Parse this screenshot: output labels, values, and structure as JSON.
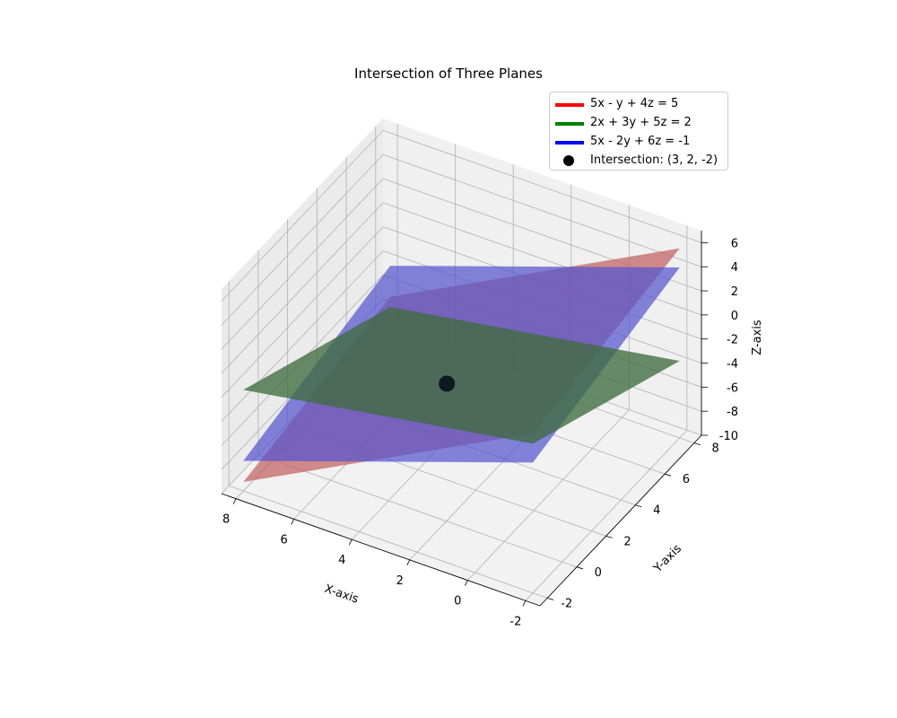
{
  "chart_data": {
    "type": "surface3d",
    "title": "Intersection of Three Planes",
    "xlabel": "X-axis",
    "ylabel": "Y-axis",
    "zlabel": "Z-axis",
    "xlim": [
      -2.5,
      8.5
    ],
    "ylim": [
      -2.5,
      8.5
    ],
    "zlim": [
      -10,
      7
    ],
    "xticks": [
      "-2",
      "0",
      "2",
      "4",
      "6",
      "8"
    ],
    "yticks": [
      "-2",
      "0",
      "2",
      "4",
      "6",
      "8"
    ],
    "zticks": [
      "-10",
      "-8",
      "-6",
      "-4",
      "-2",
      "0",
      "2",
      "4",
      "6"
    ],
    "grid": true,
    "legend_position": "top-right",
    "series": [
      {
        "name": "5x - y + 4z = 5",
        "color": "#ff0000",
        "fill": "#c06060"
      },
      {
        "name": "2x + 3y + 5z = 2",
        "color": "#008000",
        "fill": "#3f6b3f"
      },
      {
        "name": "5x - 2y + 6z = -1",
        "color": "#0000ff",
        "fill": "#5555d0"
      }
    ],
    "point": {
      "name": "Intersection: (3, 2, -2)",
      "x": 3,
      "y": 2,
      "z": -2,
      "color": "#000000"
    }
  }
}
